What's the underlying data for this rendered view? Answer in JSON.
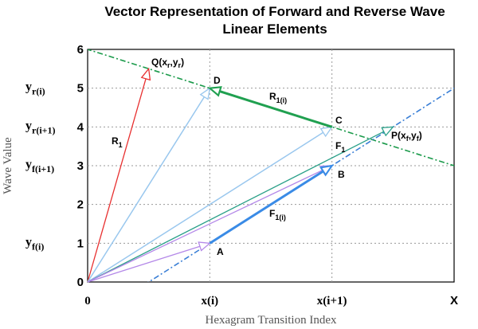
{
  "chart_data": {
    "type": "line",
    "title_line1": "Vector Representation of Forward and Reverse Wave",
    "title_line2": "Linear Elements",
    "xlabel": "Hexagram Transition Index",
    "ylabel": "Wave Value",
    "xlim": [
      0,
      3
    ],
    "ylim": [
      0,
      6
    ],
    "yticks": [
      "0",
      "1",
      "2",
      "3",
      "4",
      "5",
      "6"
    ],
    "xticks": [
      {
        "x": 0,
        "label": "0"
      },
      {
        "x": 1,
        "label": "x(i)"
      },
      {
        "x": 2,
        "label": "x(i+1)"
      },
      {
        "x": 3,
        "label": "X"
      }
    ],
    "y_annotations": [
      {
        "y": 5.0,
        "main": "y",
        "sub": "r(i)"
      },
      {
        "y": 4.0,
        "main": "y",
        "sub": "r(i+1)"
      },
      {
        "y": 3.0,
        "main": "y",
        "sub": "f(i+1)"
      },
      {
        "y": 1.0,
        "main": "y",
        "sub": "f(i)"
      }
    ],
    "grid": "dotted",
    "lines": [
      {
        "name": "reverse-line",
        "color": "#1a9a4a",
        "style": "dashdot",
        "points": [
          [
            0,
            6
          ],
          [
            3,
            3
          ]
        ]
      },
      {
        "name": "forward-line",
        "color": "#3a7fd6",
        "style": "dashdot",
        "points": [
          [
            0.5,
            0
          ],
          [
            3,
            5
          ]
        ]
      }
    ],
    "vectors": [
      {
        "name": "R1",
        "color": "#e83030",
        "width": 1.3,
        "from": [
          0,
          0
        ],
        "to": [
          0.5,
          5.5
        ]
      },
      {
        "name": "origin-to-D",
        "color": "#99c7ee",
        "width": 1.5,
        "from": [
          0,
          0
        ],
        "to": [
          1,
          5
        ]
      },
      {
        "name": "origin-to-C",
        "color": "#99c7ee",
        "width": 1.5,
        "from": [
          0,
          0
        ],
        "to": [
          2,
          4
        ]
      },
      {
        "name": "F1",
        "color": "#2aa089",
        "width": 1.3,
        "from": [
          0,
          0
        ],
        "to": [
          2.5,
          4
        ]
      },
      {
        "name": "origin-to-B",
        "color": "#b488e8",
        "width": 1.3,
        "from": [
          0,
          0
        ],
        "to": [
          2,
          3
        ]
      },
      {
        "name": "origin-to-A",
        "color": "#b488e8",
        "width": 1.3,
        "from": [
          0,
          0
        ],
        "to": [
          1,
          1
        ]
      },
      {
        "name": "R1(i)",
        "color": "#20a050",
        "width": 3,
        "from": [
          2,
          4
        ],
        "to": [
          1,
          5
        ]
      },
      {
        "name": "F1(i)",
        "color": "#3a8be6",
        "width": 3,
        "from": [
          1,
          1
        ],
        "to": [
          2,
          3
        ]
      }
    ],
    "points": [
      {
        "label": "A",
        "x": 1,
        "y": 1
      },
      {
        "label": "B",
        "x": 2,
        "y": 3
      },
      {
        "label": "C",
        "x": 2,
        "y": 4
      },
      {
        "label": "D",
        "x": 1,
        "y": 5
      }
    ],
    "vector_labels": [
      {
        "name": "R1",
        "main": "R",
        "sub": "1"
      },
      {
        "name": "R1(i)",
        "main": "R",
        "sub": "1(i)"
      },
      {
        "name": "F1",
        "main": "F",
        "sub": "1"
      },
      {
        "name": "F1(i)",
        "main": "F",
        "sub": "1(i)"
      },
      {
        "name": "Q",
        "main": "Q(x",
        "sub": "r",
        "mid": ",y",
        "sub2": "r",
        "end": ")"
      },
      {
        "name": "P",
        "main": "P(x",
        "sub": "f",
        "mid": ",y",
        "sub2": "f",
        "end": ")"
      }
    ]
  }
}
